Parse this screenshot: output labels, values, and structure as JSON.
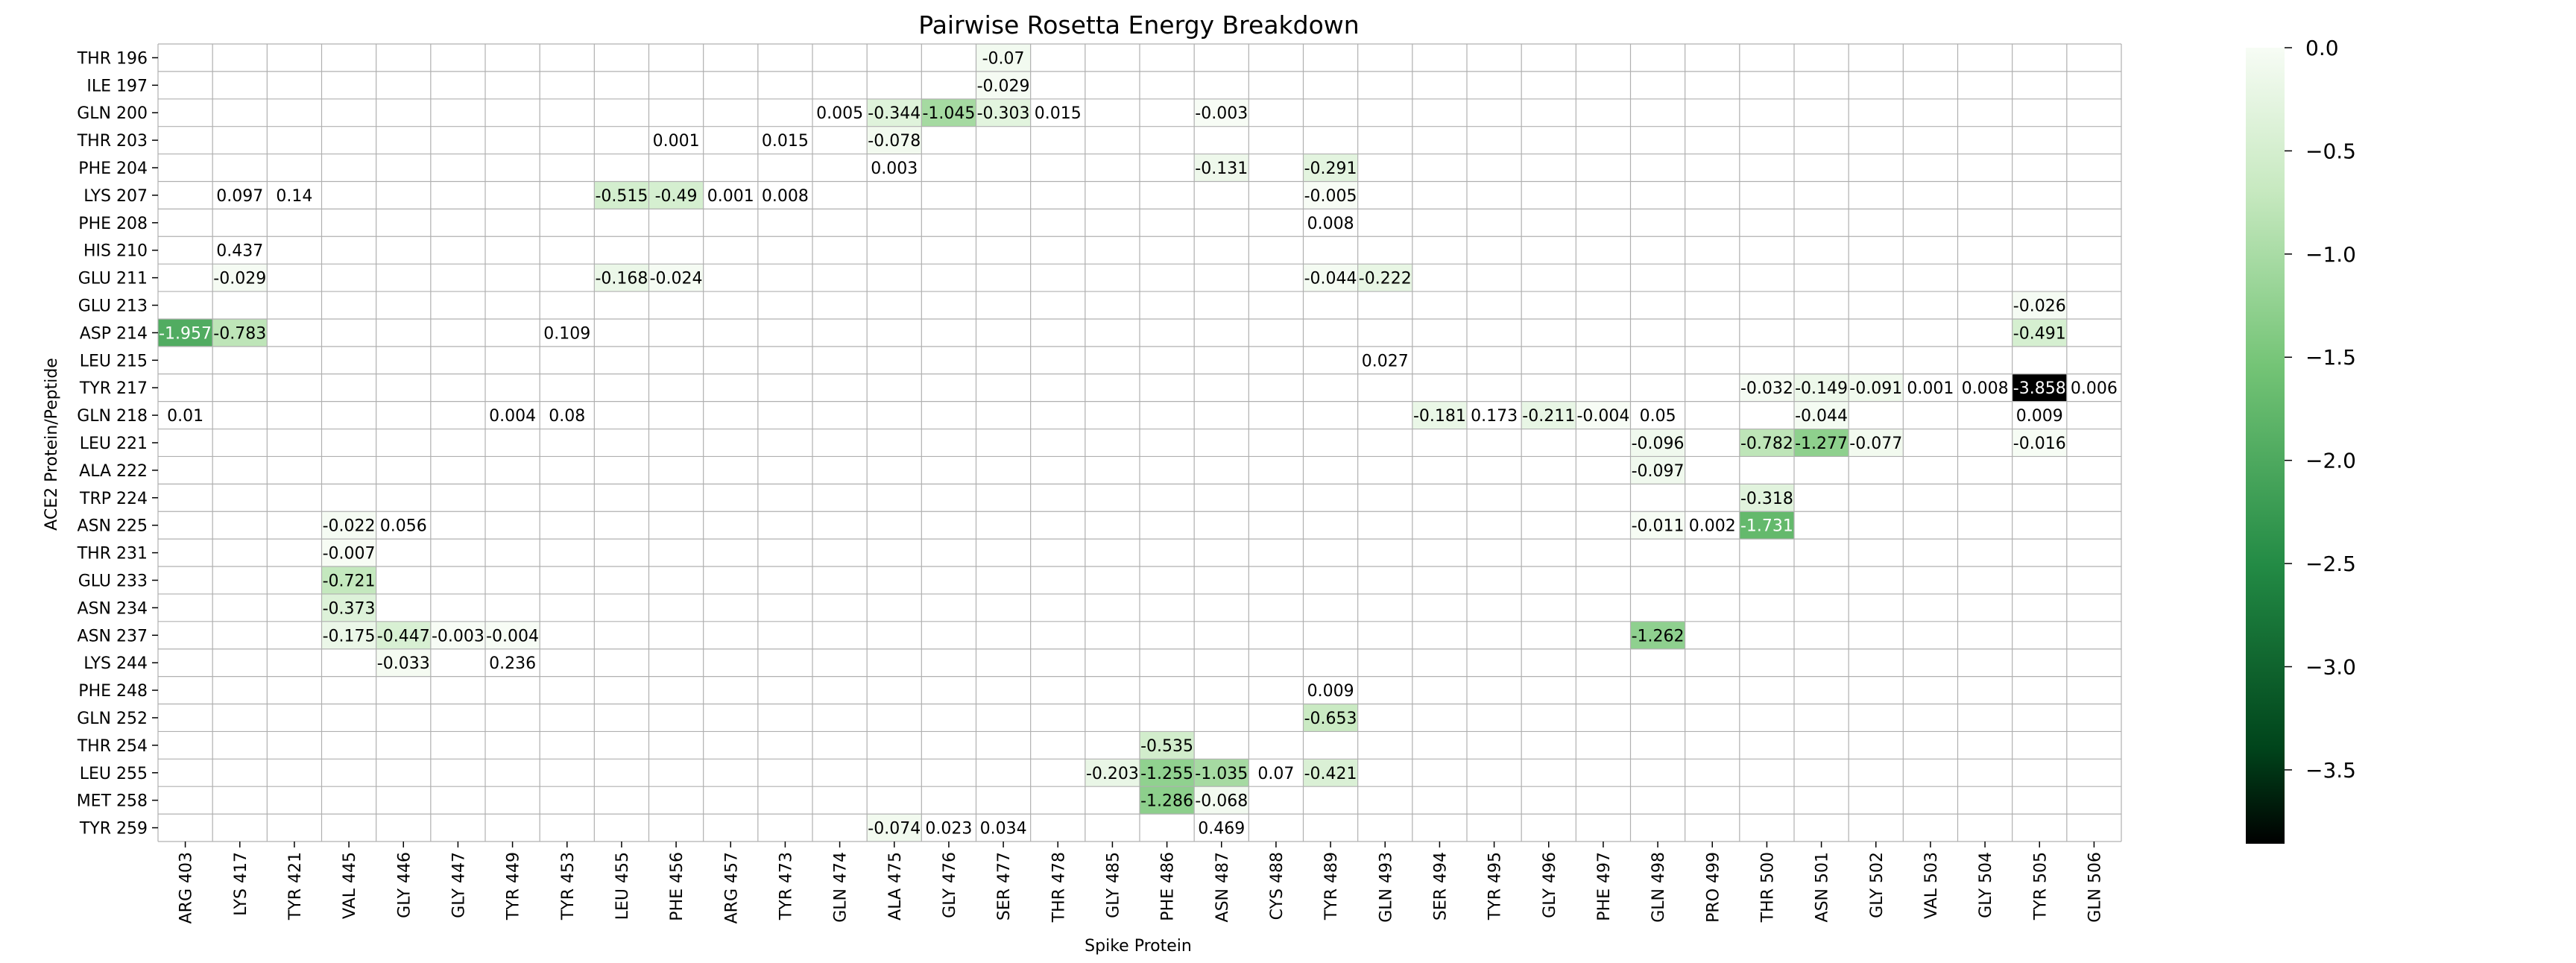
{
  "chart_data": {
    "type": "heatmap",
    "title": "Pairwise Rosetta Energy Breakdown",
    "xlabel": "Spike Protein",
    "ylabel": "ACE2 Protein/Peptide",
    "x_categories": [
      "ARG 403",
      "LYS 417",
      "TYR 421",
      "VAL 445",
      "GLY 446",
      "GLY 447",
      "TYR 449",
      "TYR 453",
      "LEU 455",
      "PHE 456",
      "ARG 457",
      "TYR 473",
      "GLN 474",
      "ALA 475",
      "GLY 476",
      "SER 477",
      "THR 478",
      "GLY 485",
      "PHE 486",
      "ASN 487",
      "CYS 488",
      "TYR 489",
      "GLN 493",
      "SER 494",
      "TYR 495",
      "GLY 496",
      "PHE 497",
      "GLN 498",
      "PRO 499",
      "THR 500",
      "ASN 501",
      "GLY 502",
      "VAL 503",
      "GLY 504",
      "TYR 505",
      "GLN 506"
    ],
    "y_categories": [
      "THR 196",
      "ILE 197",
      "GLN 200",
      "THR 203",
      "PHE 204",
      "LYS 207",
      "PHE 208",
      "HIS 210",
      "GLU 211",
      "GLU 213",
      "ASP 214",
      "LEU 215",
      "TYR 217",
      "GLN 218",
      "LEU 221",
      "ALA 222",
      "TRP 224",
      "ASN 225",
      "THR 231",
      "GLU 233",
      "ASN 234",
      "ASN 237",
      "LYS 244",
      "PHE 248",
      "GLN 252",
      "THR 254",
      "LEU 255",
      "MET 258",
      "TYR 259"
    ],
    "cells": [
      {
        "y": "THR 196",
        "x": "SER 477",
        "value": -0.07,
        "label": "-0.07"
      },
      {
        "y": "ILE 197",
        "x": "SER 477",
        "value": -0.029,
        "label": "-0.029"
      },
      {
        "y": "GLN 200",
        "x": "GLN 474",
        "value": 0.005,
        "label": "0.005"
      },
      {
        "y": "GLN 200",
        "x": "ALA 475",
        "value": -0.344,
        "label": "-0.344"
      },
      {
        "y": "GLN 200",
        "x": "GLY 476",
        "value": -1.045,
        "label": "-1.045"
      },
      {
        "y": "GLN 200",
        "x": "SER 477",
        "value": -0.303,
        "label": "-0.303"
      },
      {
        "y": "GLN 200",
        "x": "THR 478",
        "value": 0.015,
        "label": "0.015"
      },
      {
        "y": "GLN 200",
        "x": "ASN 487",
        "value": -0.003,
        "label": "-0.003"
      },
      {
        "y": "THR 203",
        "x": "PHE 456",
        "value": 0.001,
        "label": "0.001"
      },
      {
        "y": "THR 203",
        "x": "TYR 473",
        "value": 0.015,
        "label": "0.015"
      },
      {
        "y": "THR 203",
        "x": "ALA 475",
        "value": -0.078,
        "label": "-0.078"
      },
      {
        "y": "PHE 204",
        "x": "ALA 475",
        "value": 0.003,
        "label": "0.003"
      },
      {
        "y": "PHE 204",
        "x": "ASN 487",
        "value": -0.131,
        "label": "-0.131"
      },
      {
        "y": "PHE 204",
        "x": "TYR 489",
        "value": -0.291,
        "label": "-0.291"
      },
      {
        "y": "LYS 207",
        "x": "LYS 417",
        "value": 0.097,
        "label": "0.097"
      },
      {
        "y": "LYS 207",
        "x": "TYR 421",
        "value": 0.14,
        "label": "0.14"
      },
      {
        "y": "LYS 207",
        "x": "LEU 455",
        "value": -0.515,
        "label": "-0.515"
      },
      {
        "y": "LYS 207",
        "x": "PHE 456",
        "value": -0.49,
        "label": "-0.49"
      },
      {
        "y": "LYS 207",
        "x": "ARG 457",
        "value": 0.001,
        "label": "0.001"
      },
      {
        "y": "LYS 207",
        "x": "TYR 473",
        "value": 0.008,
        "label": "0.008"
      },
      {
        "y": "LYS 207",
        "x": "TYR 489",
        "value": -0.005,
        "label": "-0.005"
      },
      {
        "y": "PHE 208",
        "x": "TYR 489",
        "value": 0.008,
        "label": "0.008"
      },
      {
        "y": "HIS 210",
        "x": "LYS 417",
        "value": 0.437,
        "label": "0.437"
      },
      {
        "y": "GLU 211",
        "x": "LYS 417",
        "value": -0.029,
        "label": "-0.029"
      },
      {
        "y": "GLU 211",
        "x": "LEU 455",
        "value": -0.168,
        "label": "-0.168"
      },
      {
        "y": "GLU 211",
        "x": "PHE 456",
        "value": -0.024,
        "label": "-0.024"
      },
      {
        "y": "GLU 211",
        "x": "TYR 489",
        "value": -0.044,
        "label": "-0.044"
      },
      {
        "y": "GLU 211",
        "x": "GLN 493",
        "value": -0.222,
        "label": "-0.222"
      },
      {
        "y": "GLU 213",
        "x": "TYR 505",
        "value": -0.026,
        "label": "-0.026"
      },
      {
        "y": "ASP 214",
        "x": "ARG 403",
        "value": -1.957,
        "label": "-1.957"
      },
      {
        "y": "ASP 214",
        "x": "LYS 417",
        "value": -0.783,
        "label": "-0.783"
      },
      {
        "y": "ASP 214",
        "x": "TYR 453",
        "value": 0.109,
        "label": "0.109"
      },
      {
        "y": "ASP 214",
        "x": "TYR 505",
        "value": -0.491,
        "label": "-0.491"
      },
      {
        "y": "LEU 215",
        "x": "GLN 493",
        "value": 0.027,
        "label": "0.027"
      },
      {
        "y": "TYR 217",
        "x": "THR 500",
        "value": -0.032,
        "label": "-0.032"
      },
      {
        "y": "TYR 217",
        "x": "ASN 501",
        "value": -0.149,
        "label": "-0.149"
      },
      {
        "y": "TYR 217",
        "x": "GLY 502",
        "value": -0.091,
        "label": "-0.091"
      },
      {
        "y": "TYR 217",
        "x": "VAL 503",
        "value": 0.001,
        "label": "0.001"
      },
      {
        "y": "TYR 217",
        "x": "GLY 504",
        "value": 0.008,
        "label": "0.008"
      },
      {
        "y": "TYR 217",
        "x": "TYR 505",
        "value": -3.858,
        "label": "-3.858"
      },
      {
        "y": "TYR 217",
        "x": "GLN 506",
        "value": 0.006,
        "label": "0.006"
      },
      {
        "y": "GLN 218",
        "x": "ARG 403",
        "value": 0.01,
        "label": "0.01"
      },
      {
        "y": "GLN 218",
        "x": "TYR 449",
        "value": 0.004,
        "label": "0.004"
      },
      {
        "y": "GLN 218",
        "x": "TYR 453",
        "value": 0.08,
        "label": "0.08"
      },
      {
        "y": "GLN 218",
        "x": "SER 494",
        "value": -0.181,
        "label": "-0.181"
      },
      {
        "y": "GLN 218",
        "x": "TYR 495",
        "value": 0.173,
        "label": "0.173"
      },
      {
        "y": "GLN 218",
        "x": "GLY 496",
        "value": -0.211,
        "label": "-0.211"
      },
      {
        "y": "GLN 218",
        "x": "PHE 497",
        "value": -0.004,
        "label": "-0.004"
      },
      {
        "y": "GLN 218",
        "x": "GLN 498",
        "value": 0.05,
        "label": "0.05"
      },
      {
        "y": "GLN 218",
        "x": "ASN 501",
        "value": -0.044,
        "label": "-0.044"
      },
      {
        "y": "GLN 218",
        "x": "TYR 505",
        "value": 0.009,
        "label": "0.009"
      },
      {
        "y": "LEU 221",
        "x": "GLN 498",
        "value": -0.096,
        "label": "-0.096"
      },
      {
        "y": "LEU 221",
        "x": "THR 500",
        "value": -0.782,
        "label": "-0.782"
      },
      {
        "y": "LEU 221",
        "x": "ASN 501",
        "value": -1.277,
        "label": "-1.277"
      },
      {
        "y": "LEU 221",
        "x": "GLY 502",
        "value": -0.077,
        "label": "-0.077"
      },
      {
        "y": "LEU 221",
        "x": "TYR 505",
        "value": -0.016,
        "label": "-0.016"
      },
      {
        "y": "ALA 222",
        "x": "GLN 498",
        "value": -0.097,
        "label": "-0.097"
      },
      {
        "y": "TRP 224",
        "x": "THR 500",
        "value": -0.318,
        "label": "-0.318"
      },
      {
        "y": "ASN 225",
        "x": "VAL 445",
        "value": -0.022,
        "label": "-0.022"
      },
      {
        "y": "ASN 225",
        "x": "GLY 446",
        "value": 0.056,
        "label": "0.056"
      },
      {
        "y": "ASN 225",
        "x": "GLN 498",
        "value": -0.011,
        "label": "-0.011"
      },
      {
        "y": "ASN 225",
        "x": "PRO 499",
        "value": 0.002,
        "label": "0.002"
      },
      {
        "y": "ASN 225",
        "x": "THR 500",
        "value": -1.731,
        "label": "-1.731"
      },
      {
        "y": "THR 231",
        "x": "VAL 445",
        "value": -0.007,
        "label": "-0.007"
      },
      {
        "y": "GLU 233",
        "x": "VAL 445",
        "value": -0.721,
        "label": "-0.721"
      },
      {
        "y": "ASN 234",
        "x": "VAL 445",
        "value": -0.373,
        "label": "-0.373"
      },
      {
        "y": "ASN 237",
        "x": "VAL 445",
        "value": -0.175,
        "label": "-0.175"
      },
      {
        "y": "ASN 237",
        "x": "GLY 446",
        "value": -0.447,
        "label": "-0.447"
      },
      {
        "y": "ASN 237",
        "x": "GLY 447",
        "value": -0.003,
        "label": "-0.003"
      },
      {
        "y": "ASN 237",
        "x": "TYR 449",
        "value": -0.004,
        "label": "-0.004"
      },
      {
        "y": "ASN 237",
        "x": "GLN 498",
        "value": -1.262,
        "label": "-1.262"
      },
      {
        "y": "LYS 244",
        "x": "GLY 446",
        "value": -0.033,
        "label": "-0.033"
      },
      {
        "y": "LYS 244",
        "x": "TYR 449",
        "value": 0.236,
        "label": "0.236"
      },
      {
        "y": "PHE 248",
        "x": "TYR 489",
        "value": 0.009,
        "label": "0.009"
      },
      {
        "y": "GLN 252",
        "x": "TYR 489",
        "value": -0.653,
        "label": "-0.653"
      },
      {
        "y": "THR 254",
        "x": "PHE 486",
        "value": -0.535,
        "label": "-0.535"
      },
      {
        "y": "LEU 255",
        "x": "GLY 485",
        "value": -0.203,
        "label": "-0.203"
      },
      {
        "y": "LEU 255",
        "x": "PHE 486",
        "value": -1.255,
        "label": "-1.255"
      },
      {
        "y": "LEU 255",
        "x": "ASN 487",
        "value": -1.035,
        "label": "-1.035"
      },
      {
        "y": "LEU 255",
        "x": "CYS 488",
        "value": 0.07,
        "label": "0.07"
      },
      {
        "y": "LEU 255",
        "x": "TYR 489",
        "value": -0.421,
        "label": "-0.421"
      },
      {
        "y": "MET 258",
        "x": "PHE 486",
        "value": -1.286,
        "label": "-1.286"
      },
      {
        "y": "MET 258",
        "x": "ASN 487",
        "value": -0.068,
        "label": "-0.068"
      },
      {
        "y": "TYR 259",
        "x": "ALA 475",
        "value": -0.074,
        "label": "-0.074"
      },
      {
        "y": "TYR 259",
        "x": "GLY 476",
        "value": 0.023,
        "label": "0.023"
      },
      {
        "y": "TYR 259",
        "x": "SER 477",
        "value": 0.034,
        "label": "0.034"
      },
      {
        "y": "TYR 259",
        "x": "ASN 487",
        "value": 0.469,
        "label": "0.469"
      }
    ],
    "colorbar": {
      "range": [
        -3.858,
        0.0
      ],
      "ticks": [
        "0.0",
        "-0.5",
        "-1.0",
        "-1.5",
        "-2.0",
        "-2.5",
        "-3.0",
        "-3.5"
      ],
      "colors": [
        "#f7fcf5",
        "#c7e9c0",
        "#74c476",
        "#238b45",
        "#00441b",
        "#000000"
      ]
    },
    "grid": true
  }
}
